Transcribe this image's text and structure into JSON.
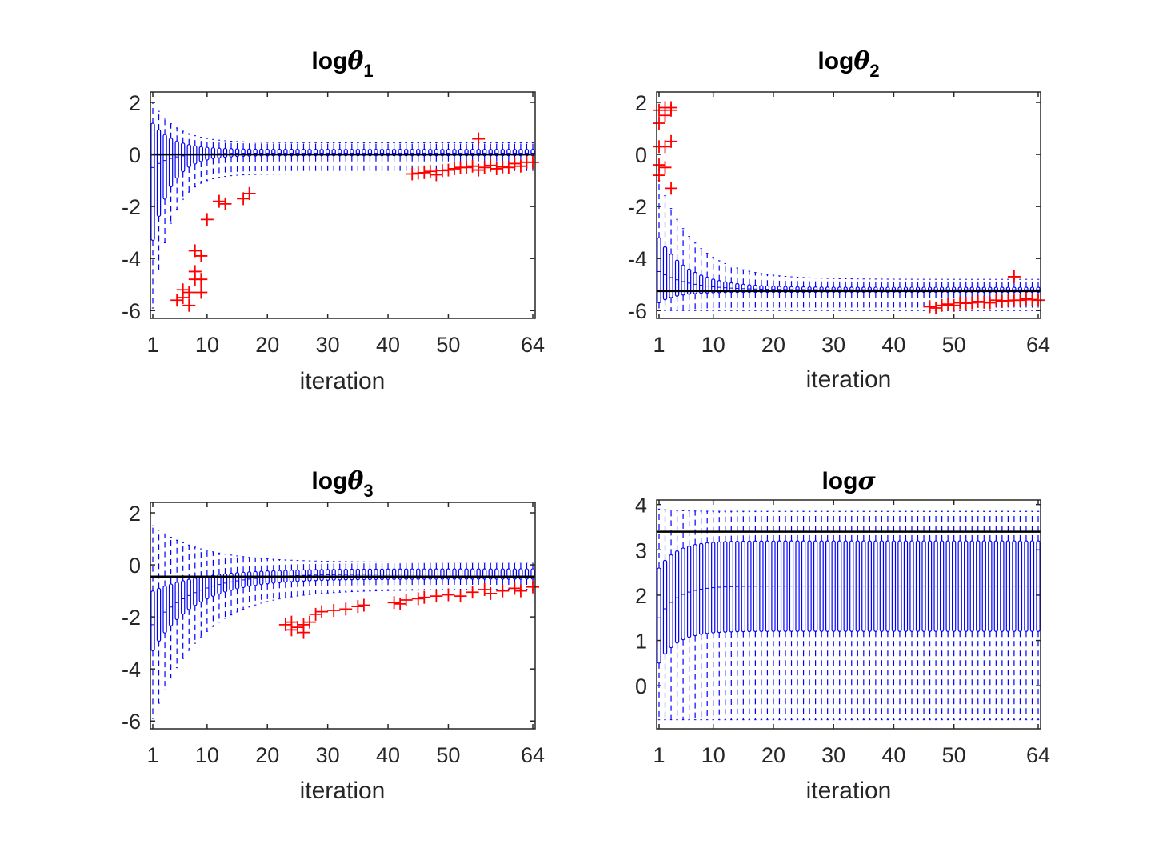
{
  "chart_data": [
    {
      "type": "boxplot",
      "title": {
        "prefix": "log",
        "symbol": "θ",
        "subscript": "1"
      },
      "xlabel": "iteration",
      "ylabel": "",
      "xlim": [
        1,
        64
      ],
      "ylim": [
        -6.3,
        2.4
      ],
      "xticks": [
        1,
        10,
        20,
        30,
        40,
        50,
        64
      ],
      "yticks": [
        -6,
        -4,
        -2,
        0,
        2
      ],
      "reference_line": 0,
      "box_color": "#0000ff",
      "outlier_color": "#ff0000",
      "reference_color": "#000000",
      "stats": {
        "wl_start": -5.9,
        "wl_end": -0.75,
        "tl": 3.0,
        "wh_start": 2.0,
        "wh_end": 0.45,
        "th": 4.0,
        "q1_start": -3.3,
        "q1_end": -0.05,
        "t1": 3.0,
        "q3_start": 1.2,
        "q3_end": 0.2,
        "t3": 3.5,
        "med_start": -0.5,
        "med_end": 0.05,
        "tm": 3.0
      },
      "outliers": [
        [
          5,
          -5.6
        ],
        [
          6,
          -5.5
        ],
        [
          6,
          -5.2
        ],
        [
          7,
          -5.8
        ],
        [
          7,
          -5.3
        ],
        [
          8,
          -4.8
        ],
        [
          8,
          -4.5
        ],
        [
          8,
          -3.7
        ],
        [
          9,
          -5.3
        ],
        [
          9,
          -4.8
        ],
        [
          9,
          -3.9
        ],
        [
          10,
          -2.5
        ],
        [
          12,
          -1.8
        ],
        [
          13,
          -1.9
        ],
        [
          16,
          -1.7
        ],
        [
          17,
          -1.5
        ],
        [
          44,
          -0.75
        ],
        [
          45,
          -0.72
        ],
        [
          46,
          -0.7
        ],
        [
          47,
          -0.65
        ],
        [
          48,
          -0.78
        ],
        [
          49,
          -0.62
        ],
        [
          50,
          -0.6
        ],
        [
          51,
          -0.55
        ],
        [
          52,
          -0.5
        ],
        [
          53,
          -0.5
        ],
        [
          54,
          -0.45
        ],
        [
          55,
          -0.6
        ],
        [
          55,
          0.6
        ],
        [
          56,
          -0.5
        ],
        [
          57,
          -0.42
        ],
        [
          58,
          -0.55
        ],
        [
          59,
          -0.48
        ],
        [
          60,
          -0.5
        ],
        [
          61,
          -0.35
        ],
        [
          62,
          -0.45
        ],
        [
          63,
          -0.3
        ],
        [
          64,
          -0.3
        ]
      ]
    },
    {
      "type": "boxplot",
      "title": {
        "prefix": "log",
        "symbol": "θ",
        "subscript": "2"
      },
      "xlabel": "iteration",
      "ylabel": "",
      "xlim": [
        1,
        64
      ],
      "ylim": [
        -6.3,
        2.4
      ],
      "xticks": [
        1,
        10,
        20,
        30,
        40,
        50,
        64
      ],
      "yticks": [
        -6,
        -4,
        -2,
        0,
        2
      ],
      "reference_line": -5.25,
      "box_color": "#0000ff",
      "outlier_color": "#ff0000",
      "reference_color": "#000000",
      "stats": {
        "wl_start": -6.0,
        "wl_end": -6.0,
        "tl": 3.0,
        "wh_start": -1.0,
        "wh_end": -4.8,
        "th": 6.0,
        "q1_start": -5.7,
        "q1_end": -5.3,
        "t1": 3.0,
        "q3_start": -3.2,
        "q3_end": -5.1,
        "t3": 5.0,
        "med_start": -4.5,
        "med_end": -5.2,
        "tm": 5.0
      },
      "outliers": [
        [
          1,
          1.7
        ],
        [
          1,
          1.2
        ],
        [
          1,
          0.3
        ],
        [
          1,
          -0.4
        ],
        [
          1,
          -0.8
        ],
        [
          2,
          1.8
        ],
        [
          2,
          1.5
        ],
        [
          2,
          0.3
        ],
        [
          2,
          -0.5
        ],
        [
          3,
          1.7
        ],
        [
          3,
          0.5
        ],
        [
          3,
          -1.3
        ],
        [
          3,
          1.8
        ],
        [
          46,
          -5.85
        ],
        [
          47,
          -5.9
        ],
        [
          48,
          -5.8
        ],
        [
          49,
          -5.75
        ],
        [
          50,
          -5.8
        ],
        [
          51,
          -5.7
        ],
        [
          52,
          -5.72
        ],
        [
          53,
          -5.7
        ],
        [
          54,
          -5.65
        ],
        [
          55,
          -5.68
        ],
        [
          56,
          -5.7
        ],
        [
          57,
          -5.6
        ],
        [
          58,
          -5.65
        ],
        [
          59,
          -5.62
        ],
        [
          60,
          -4.7
        ],
        [
          60,
          -5.6
        ],
        [
          61,
          -5.6
        ],
        [
          62,
          -5.55
        ],
        [
          63,
          -5.58
        ],
        [
          64,
          -5.6
        ]
      ]
    },
    {
      "type": "boxplot",
      "title": {
        "prefix": "log",
        "symbol": "θ",
        "subscript": "3"
      },
      "xlabel": "iteration",
      "ylabel": "",
      "xlim": [
        1,
        64
      ],
      "ylim": [
        -6.3,
        2.4
      ],
      "xticks": [
        1,
        10,
        20,
        30,
        40,
        50,
        64
      ],
      "yticks": [
        -6,
        -4,
        -2,
        0,
        2
      ],
      "reference_line": -0.45,
      "box_color": "#0000ff",
      "outlier_color": "#ff0000",
      "reference_color": "#000000",
      "stats": {
        "wl_start": -5.9,
        "wl_end": -0.95,
        "tl": 8.0,
        "wh_start": 1.5,
        "wh_end": 0.1,
        "th": 8.0,
        "q1_start": -3.3,
        "q1_end": -0.55,
        "t1": 7.0,
        "q3_start": -1.0,
        "q3_end": -0.15,
        "t3": 8.0,
        "med_start": -2.3,
        "med_end": -0.35,
        "tm": 7.0
      },
      "outliers": [
        [
          23,
          -2.3
        ],
        [
          24,
          -2.5
        ],
        [
          24,
          -2.2
        ],
        [
          25,
          -2.4
        ],
        [
          26,
          -2.3
        ],
        [
          26,
          -2.6
        ],
        [
          27,
          -2.2
        ],
        [
          28,
          -1.9
        ],
        [
          29,
          -1.8
        ],
        [
          31,
          -1.75
        ],
        [
          33,
          -1.7
        ],
        [
          35,
          -1.6
        ],
        [
          36,
          -1.55
        ],
        [
          41,
          -1.45
        ],
        [
          42,
          -1.5
        ],
        [
          43,
          -1.35
        ],
        [
          45,
          -1.3
        ],
        [
          46,
          -1.25
        ],
        [
          48,
          -1.2
        ],
        [
          50,
          -1.15
        ],
        [
          52,
          -1.2
        ],
        [
          54,
          -1.05
        ],
        [
          56,
          -0.95
        ],
        [
          57,
          -1.1
        ],
        [
          59,
          -1.0
        ],
        [
          61,
          -0.9
        ],
        [
          62,
          -1.0
        ],
        [
          64,
          -0.85
        ]
      ]
    },
    {
      "type": "boxplot",
      "title": {
        "prefix": "log",
        "symbol": "σ",
        "subscript": ""
      },
      "xlabel": "iteration",
      "ylabel": "",
      "xlim": [
        1,
        64
      ],
      "ylim": [
        -0.95,
        4.1
      ],
      "xticks": [
        1,
        10,
        20,
        30,
        40,
        50,
        64
      ],
      "yticks": [
        0,
        1,
        2,
        3,
        4
      ],
      "reference_line": 3.4,
      "box_color": "#0000ff",
      "outlier_color": "#ff0000",
      "reference_color": "#000000",
      "stats": {
        "wl_start": -0.75,
        "wl_end": -0.75,
        "tl": 3.0,
        "wh_start": 3.9,
        "wh_end": 3.85,
        "th": 3.0,
        "q1_start": 0.5,
        "q1_end": 1.2,
        "t1": 3.0,
        "q3_start": 2.6,
        "q3_end": 3.2,
        "t3": 3.0,
        "med_start": 1.5,
        "med_end": 2.2,
        "tm": 3.0
      },
      "outliers": []
    }
  ]
}
